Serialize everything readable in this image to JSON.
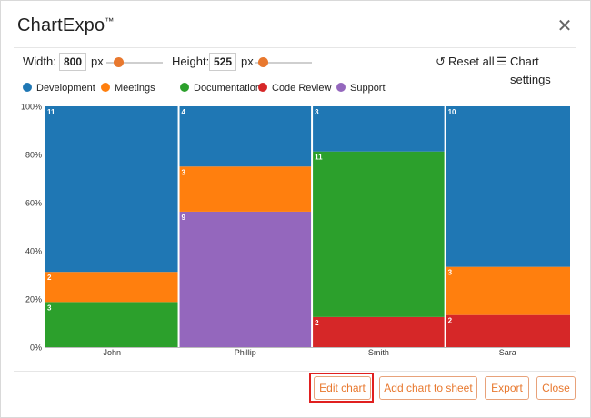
{
  "dialog": {
    "title": "ChartExpo",
    "trademark": "™",
    "close_icon": "close-icon"
  },
  "controls": {
    "width_label": "Width:",
    "width_value": "800",
    "width_unit": "px",
    "height_label": "Height:",
    "height_value": "525",
    "height_unit": "px",
    "reset_label": "Reset all",
    "settings_label": "Chart settings"
  },
  "legend": [
    {
      "name": "Development",
      "color": "#1f77b4"
    },
    {
      "name": "Meetings",
      "color": "#ff7f0e"
    },
    {
      "name": "Documentation",
      "color": "#2ca02c"
    },
    {
      "name": "Code Review",
      "color": "#d62728"
    },
    {
      "name": "Support",
      "color": "#9467bd"
    }
  ],
  "chart_data": {
    "type": "bar",
    "subtype": "marimekko-100-percent-stacked",
    "categories": [
      "John",
      "Phillip",
      "Smith",
      "Sara"
    ],
    "yticks": [
      "0%",
      "20%",
      "40%",
      "60%",
      "80%",
      "100%"
    ],
    "ylim": [
      0,
      100
    ],
    "grid": false,
    "legend_position": "top-left",
    "columns": [
      {
        "name": "John",
        "segments": [
          {
            "series": "Documentation",
            "value": 3,
            "color": "#2ca02c"
          },
          {
            "series": "Meetings",
            "value": 2,
            "color": "#ff7f0e"
          },
          {
            "series": "Development",
            "value": 11,
            "color": "#1f77b4"
          }
        ]
      },
      {
        "name": "Phillip",
        "segments": [
          {
            "series": "Support",
            "value": 9,
            "color": "#9467bd"
          },
          {
            "series": "Meetings",
            "value": 3,
            "color": "#ff7f0e"
          },
          {
            "series": "Development",
            "value": 4,
            "color": "#1f77b4"
          }
        ]
      },
      {
        "name": "Smith",
        "segments": [
          {
            "series": "Code Review",
            "value": 2,
            "color": "#d62728"
          },
          {
            "series": "Documentation",
            "value": 11,
            "color": "#2ca02c"
          },
          {
            "series": "Development",
            "value": 3,
            "color": "#1f77b4"
          }
        ]
      },
      {
        "name": "Sara",
        "segments": [
          {
            "series": "Code Review",
            "value": 2,
            "color": "#d62728"
          },
          {
            "series": "Meetings",
            "value": 3,
            "color": "#ff7f0e"
          },
          {
            "series": "Development",
            "value": 10,
            "color": "#1f77b4"
          }
        ]
      }
    ]
  },
  "footer": {
    "edit_chart": "Edit chart",
    "add_to_sheet": "Add chart to sheet",
    "export": "Export",
    "close": "Close"
  }
}
